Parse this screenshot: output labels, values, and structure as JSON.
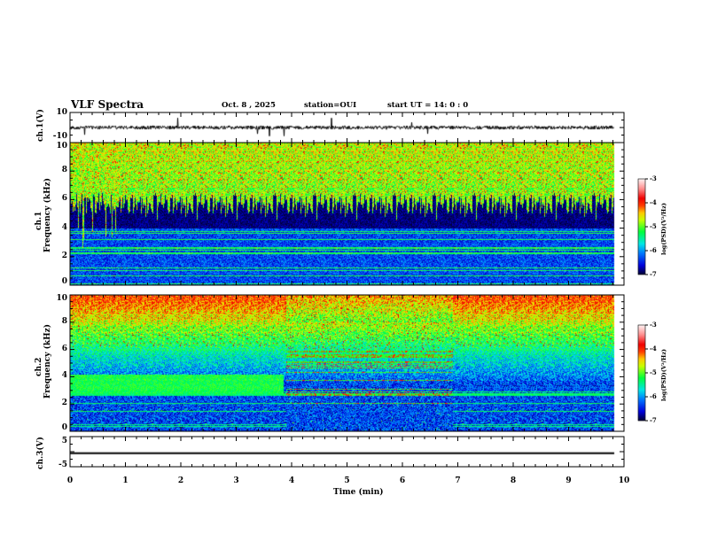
{
  "header": {
    "title": "VLF Spectra",
    "date": "Oct. 8  , 2025",
    "station": "station=OUI",
    "start": "start  UT =   14: 0  : 0"
  },
  "chart_data": [
    {
      "type": "line",
      "panel": "ch1-waveform",
      "ylabel": "ch.1(V)",
      "ylim": [
        -10,
        10
      ],
      "yticks": [
        "10",
        "-10"
      ],
      "xlim": [
        0,
        10
      ],
      "data_end_min": 9.82,
      "baseline": 0,
      "description_values": {
        "typical_amplitude": 1.0,
        "spike_amplitude": 5
      }
    },
    {
      "type": "heatmap",
      "panel": "ch1-spectrogram",
      "ylabel": [
        "ch.1",
        "Frequency (kHz)"
      ],
      "ylim": [
        0,
        10
      ],
      "yticks": [
        "0",
        "2",
        "4",
        "6",
        "8",
        "10"
      ],
      "xlim": [
        0,
        10
      ],
      "colorbar": {
        "label": "log(PSD)(V²/Hz)",
        "range": [
          -7,
          -3
        ],
        "ticks": [
          "-3",
          "-4",
          "-5",
          "-6",
          "-7"
        ]
      }
    },
    {
      "type": "heatmap",
      "panel": "ch2-spectrogram",
      "ylabel": [
        "ch.2",
        "Frequency (kHz)"
      ],
      "ylim": [
        0,
        10
      ],
      "yticks": [
        "0",
        "2",
        "4",
        "6",
        "8",
        "10"
      ],
      "xlim": [
        0,
        10
      ],
      "transitions_min": [
        3.9,
        6.9
      ],
      "colorbar": {
        "label": "log(PSD)(V²/Hz)",
        "range": [
          -7,
          -3
        ],
        "ticks": [
          "-3",
          "-4",
          "-5",
          "-6",
          "-7"
        ]
      }
    },
    {
      "type": "line",
      "panel": "ch3-waveform",
      "ylabel": "ch.3(V)",
      "ylim": [
        -5,
        5
      ],
      "yticks": [
        "5",
        "-5"
      ],
      "xlim": [
        0,
        10
      ],
      "constant_value": -0.5
    }
  ],
  "xaxis": {
    "label": "Time  (min)",
    "ticks": [
      "0",
      "1",
      "2",
      "3",
      "4",
      "5",
      "6",
      "7",
      "8",
      "9",
      "10"
    ]
  },
  "colors": {
    "axis": "#000000",
    "background": "#ffffff"
  }
}
